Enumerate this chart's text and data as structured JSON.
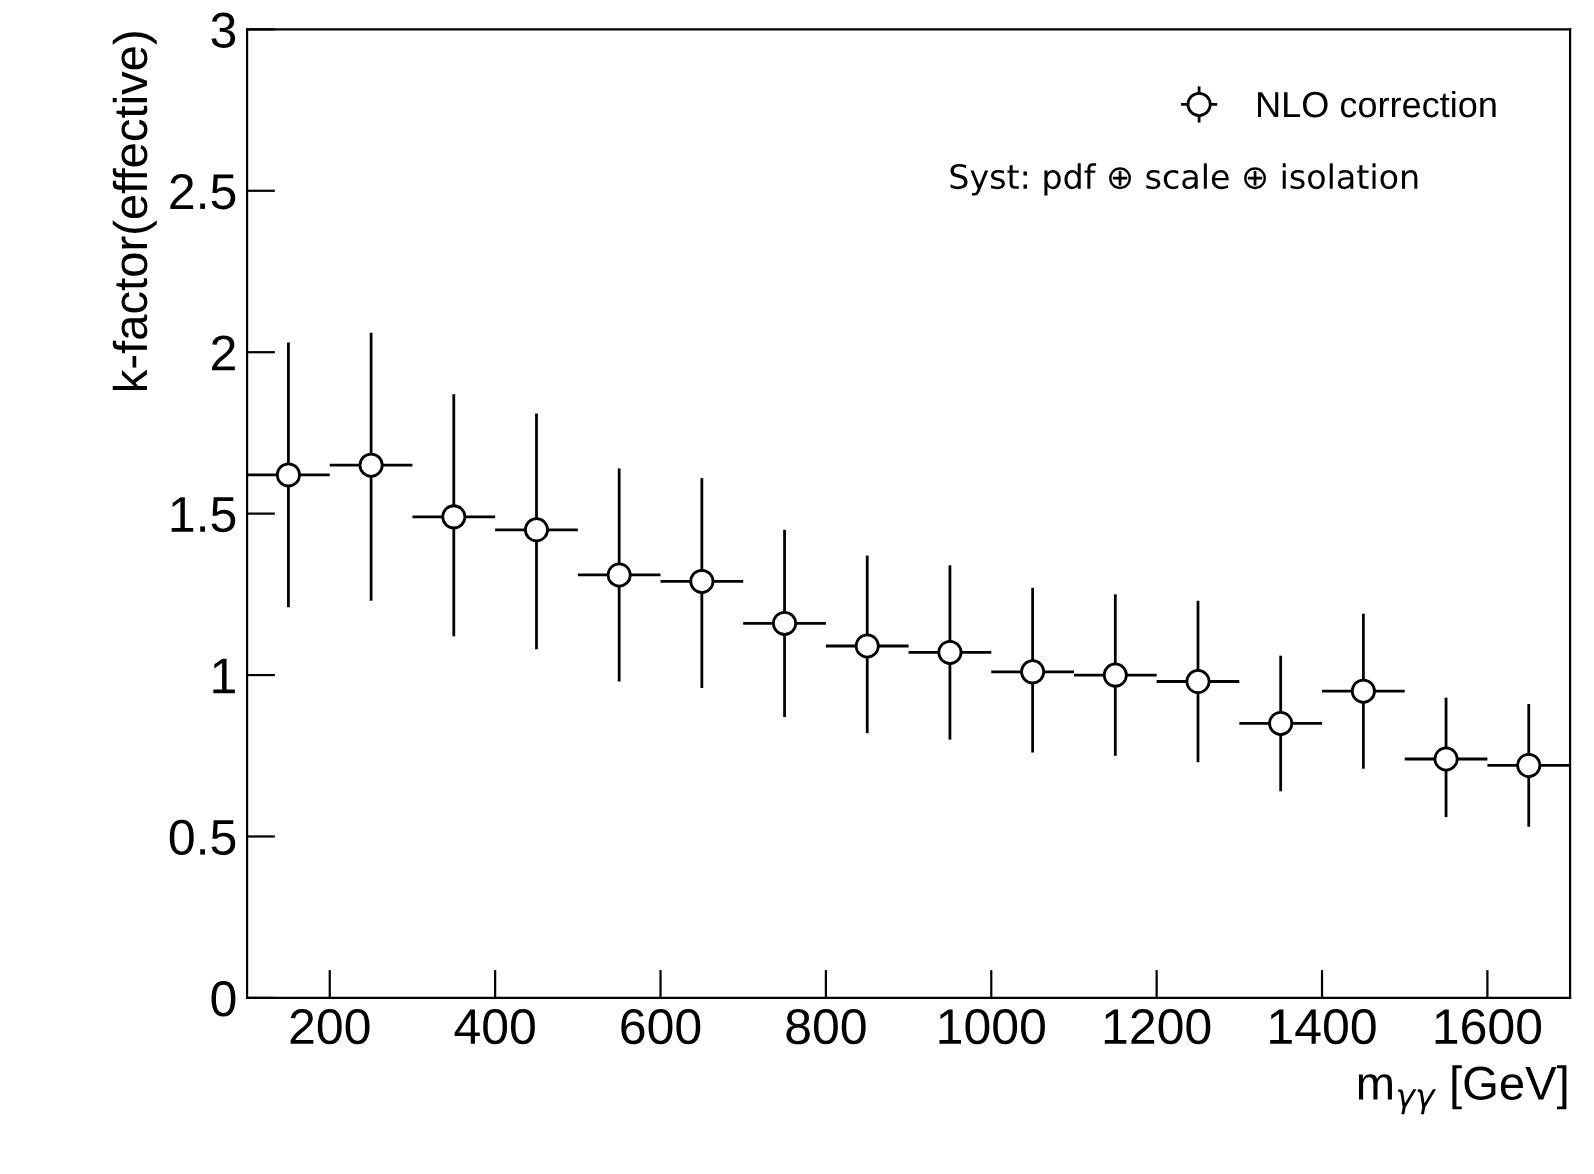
{
  "chart_data": {
    "type": "scatter",
    "xlabel": "m$_{γγ}$ [GeV]",
    "ylabel": "k-factor(effective)",
    "x": [
      150,
      250,
      350,
      450,
      550,
      650,
      750,
      850,
      950,
      1050,
      1150,
      1250,
      1350,
      1450,
      1550,
      1650
    ],
    "series": [
      {
        "name": "NLO correction",
        "color": "#000000",
        "values": [
          1.62,
          1.65,
          1.49,
          1.45,
          1.31,
          1.29,
          1.16,
          1.09,
          1.07,
          1.01,
          1.0,
          0.98,
          0.85,
          0.95,
          0.74,
          0.72
        ],
        "errors": [
          [
            1.21,
            2.03
          ],
          [
            1.23,
            2.06
          ],
          [
            1.12,
            1.87
          ],
          [
            1.08,
            1.81
          ],
          [
            0.98,
            1.64
          ],
          [
            0.96,
            1.61
          ],
          [
            0.87,
            1.45
          ],
          [
            0.82,
            1.37
          ],
          [
            0.8,
            1.34
          ],
          [
            0.76,
            1.27
          ],
          [
            0.75,
            1.25
          ],
          [
            0.73,
            1.23
          ],
          [
            0.64,
            1.06
          ],
          [
            0.71,
            1.19
          ],
          [
            0.56,
            0.93
          ],
          [
            0.53,
            0.91
          ]
        ],
        "xerrors": [
          50,
          50,
          50,
          50,
          50,
          50,
          50,
          50,
          50,
          50,
          50,
          50,
          50,
          50,
          50,
          50
        ]
      }
    ],
    "marker": "circle",
    "xlim": [
      100,
      1700
    ],
    "xticks": [
      200,
      400,
      600,
      800,
      1000,
      1200,
      1400,
      1600
    ],
    "ylim": [
      0,
      3
    ],
    "yticks": [
      0,
      0.5,
      1,
      1.5,
      2,
      2.5,
      3
    ],
    "annotations": [
      "Syst: pdf ⊕ scale ⊕ isolation"
    ],
    "legend": "top right",
    "grid": false
  }
}
